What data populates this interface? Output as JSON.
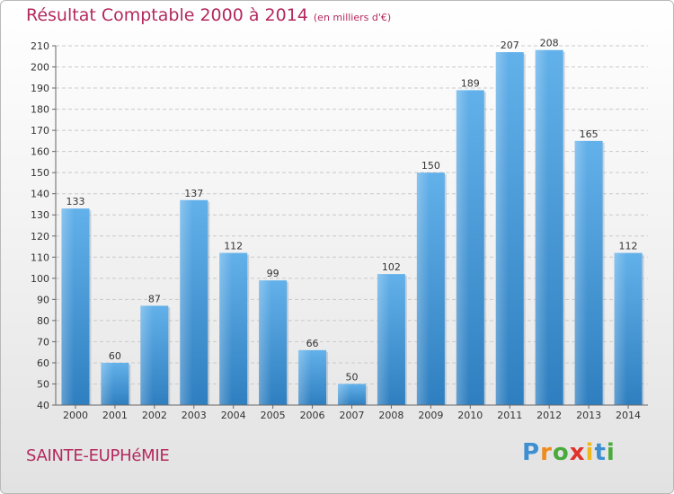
{
  "chart_data": {
    "type": "bar",
    "title": "Résultat Comptable 2000 à 2014",
    "subtitle": "(en milliers d'€)",
    "categories": [
      "2000",
      "2001",
      "2002",
      "2003",
      "2004",
      "2005",
      "2006",
      "2007",
      "2008",
      "2009",
      "2010",
      "2011",
      "2012",
      "2013",
      "2014"
    ],
    "values": [
      133,
      60,
      87,
      137,
      112,
      99,
      66,
      50,
      102,
      150,
      189,
      207,
      208,
      165,
      112
    ],
    "ylim": [
      40,
      210
    ],
    "yticks": [
      40,
      50,
      60,
      70,
      80,
      90,
      100,
      110,
      120,
      130,
      140,
      150,
      160,
      170,
      180,
      190,
      200,
      210
    ],
    "grid": true,
    "bar_color": "#4f9fdc",
    "xlabel": "",
    "ylabel": ""
  },
  "place_name": "SAINTE-EUPHéMIE",
  "logo": {
    "letters": [
      "P",
      "r",
      "o",
      "x",
      "i",
      "t",
      "i"
    ],
    "colors": [
      "#3d8fd1",
      "#f08a1c",
      "#4aaa3c",
      "#e0322b",
      "#f0b81c",
      "#3d8fd1",
      "#4aaa3c"
    ]
  },
  "colors": {
    "title": "#b4295e",
    "bar": "#4f9fdc"
  }
}
